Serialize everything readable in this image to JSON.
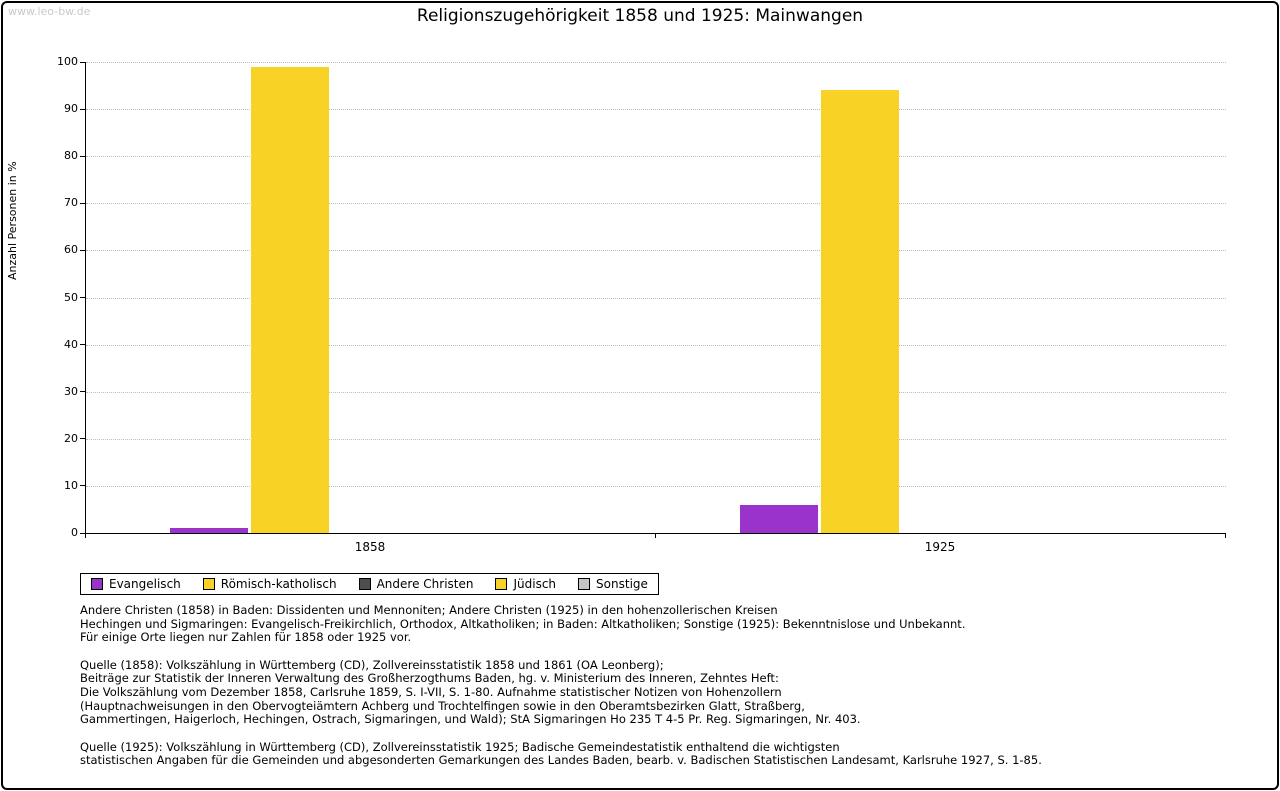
{
  "page": {
    "watermark": "www.leo-bw.de",
    "title": "Religionszugehörigkeit 1858 und 1925: Mainwangen"
  },
  "chart_data": {
    "type": "bar",
    "title": "Religionszugehörigkeit 1858 und 1925: Mainwangen",
    "xlabel": "",
    "ylabel": "Anzahl Personen in %",
    "categories": [
      "1858",
      "1925"
    ],
    "series": [
      {
        "name": "Evangelisch",
        "color": "#9933CC",
        "values": [
          1,
          6
        ]
      },
      {
        "name": "Römisch-katholisch",
        "color": "#F9D226",
        "values": [
          99,
          94
        ]
      },
      {
        "name": "Andere Christen",
        "color": "#4D4D4D",
        "values": [
          0,
          0
        ]
      },
      {
        "name": "Jüdisch",
        "color": "#F9D226",
        "values": [
          0,
          0
        ]
      },
      {
        "name": "Sonstige",
        "color": "#C6C6C6",
        "values": [
          0,
          0
        ]
      }
    ],
    "ylim": [
      0,
      100
    ],
    "ytick_step": 10,
    "grid": true,
    "legend_position": "bottom-left"
  },
  "footnotes": {
    "note": "Andere Christen (1858) in Baden: Dissidenten und Mennoniten; Andere Christen (1925) in den hohenzollerischen Kreisen\nHechingen und Sigmaringen: Evangelisch-Freikirchlich, Orthodox, Altkatholiken; in Baden: Altkatholiken; Sonstige (1925): Bekenntnislose und Unbekannt.\nFür einige Orte liegen nur Zahlen für 1858 oder 1925 vor.",
    "source_1858": "Quelle (1858): Volkszählung in Württemberg (CD), Zollvereinsstatistik 1858 und 1861 (OA Leonberg);\nBeiträge zur Statistik der Inneren Verwaltung des Großherzogthums Baden, hg. v. Ministerium des Inneren, Zehntes Heft:\nDie Volkszählung vom Dezember 1858, Carlsruhe 1859, S. I-VII, S. 1-80. Aufnahme statistischer Notizen von Hohenzollern\n(Hauptnachweisungen in den Obervogteiämtern Achberg und Trochtelfingen sowie in den Oberamtsbezirken Glatt, Straßberg,\nGammertingen, Haigerloch, Hechingen, Ostrach, Sigmaringen, und Wald); StA Sigmaringen Ho 235 T 4-5 Pr. Reg. Sigmaringen, Nr. 403.",
    "source_1925": "Quelle (1925): Volkszählung in Württemberg (CD), Zollvereinsstatistik 1925; Badische Gemeindestatistik enthaltend die wichtigsten\nstatistischen Angaben für die Gemeinden und abgesonderten Gemarkungen des Landes Baden, bearb. v. Badischen Statistischen Landesamt, Karlsruhe 1927, S. 1-85."
  }
}
